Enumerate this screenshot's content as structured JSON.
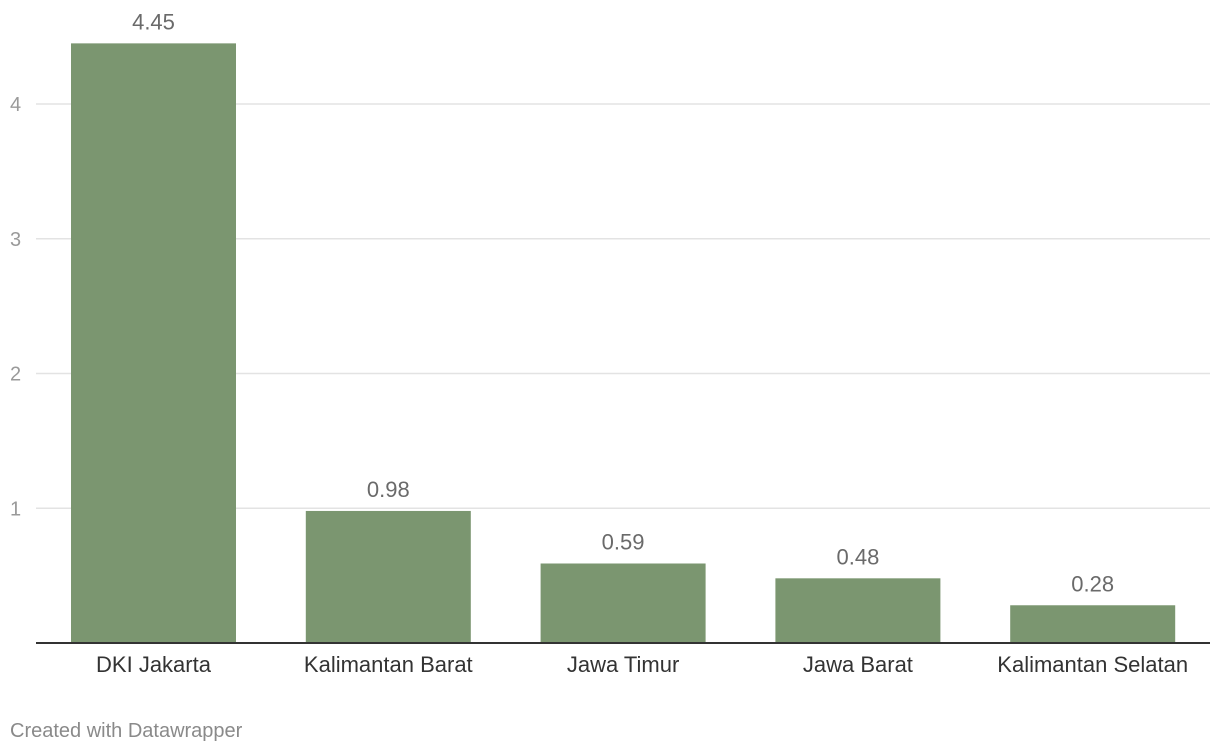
{
  "chart_data": {
    "type": "bar",
    "categories": [
      "DKI Jakarta",
      "Kalimantan Barat",
      "Jawa Timur",
      "Jawa Barat",
      "Kalimantan Selatan"
    ],
    "values": [
      4.45,
      0.98,
      0.59,
      0.48,
      0.28
    ],
    "value_labels": [
      "4.45",
      "0.98",
      "0.59",
      "0.48",
      "0.28"
    ],
    "y_ticks": [
      1,
      2,
      3,
      4
    ],
    "ylim": [
      0,
      4.45
    ],
    "grid": true,
    "bar_color": "#7b9670"
  },
  "footer": {
    "credit": "Created with Datawrapper"
  }
}
